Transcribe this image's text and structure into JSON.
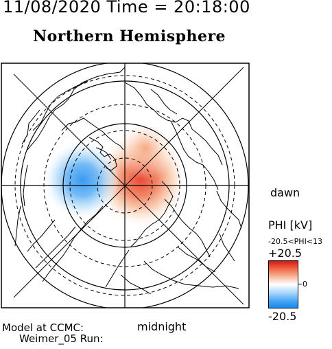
{
  "header": {
    "datetime": "11/08/2020 Time = 20:18:00",
    "hemisphere": "Northern Hemisphere"
  },
  "map": {
    "label_dawn": "dawn",
    "label_midnight": "midnight"
  },
  "colorbar": {
    "title": "PHI [kV]",
    "range_text": "-20.5<PHI<13",
    "max_label": "+20.5",
    "mid_label": "0",
    "min_label": "-20.5",
    "colors": {
      "max": "#d21818",
      "zero": "#ffffff",
      "min": "#1788ec"
    }
  },
  "footer": {
    "line1": "Model at CCMC:",
    "line2": "Weimer_05 Run:"
  }
}
